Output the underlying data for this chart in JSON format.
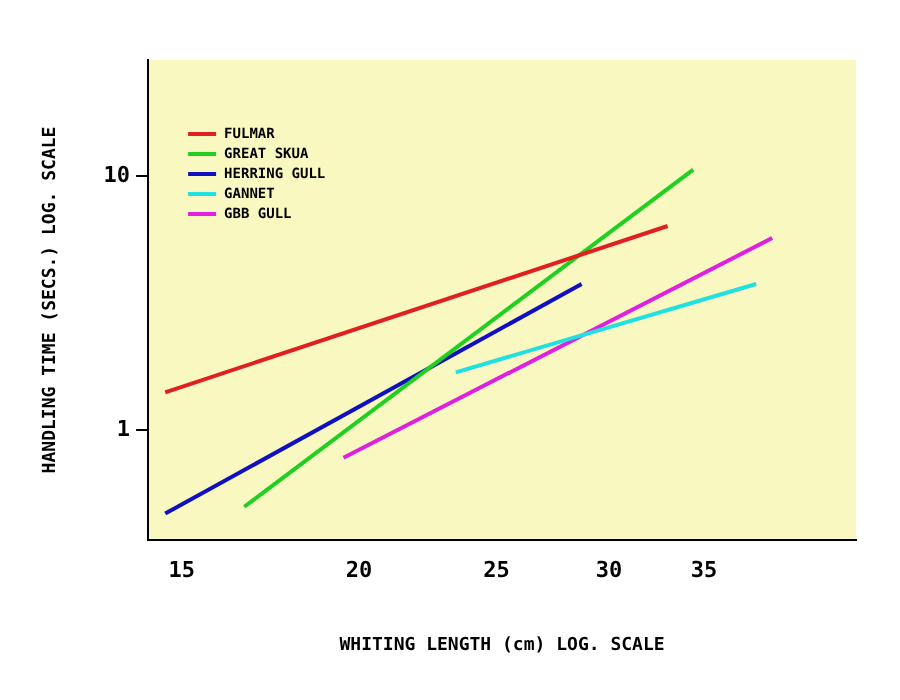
{
  "chart_data": {
    "type": "line",
    "xlabel": "WHITING LENGTH (cm) LOG. SCALE",
    "ylabel": "HANDLING TIME (SECS.) LOG. SCALE",
    "log": "xy",
    "xlim": [
      14.2,
      44.8
    ],
    "ylim": [
      0.37,
      28.6
    ],
    "xticks": [
      15,
      20,
      25,
      30,
      35
    ],
    "yticks": [
      1,
      10
    ],
    "grid": false,
    "legend": "top left",
    "marker": "none",
    "line_style": "solid",
    "series": [
      {
        "name": "FULMAR",
        "color": "#e02020",
        "x": [
          14.6,
          33
        ],
        "values": [
          1.41,
          6.36
        ]
      },
      {
        "name": "GREAT SKUA",
        "color": "#20d020",
        "x": [
          16.6,
          34.4
        ],
        "values": [
          0.5,
          10.6
        ]
      },
      {
        "name": "HERRING GULL",
        "color": "#1010c0",
        "x": [
          14.6,
          28.7
        ],
        "values": [
          0.47,
          3.76
        ]
      },
      {
        "name": "GANNET",
        "color": "#20e0e0",
        "x": [
          23.4,
          38.1
        ],
        "values": [
          1.69,
          3.76
        ]
      },
      {
        "name": "GBB GULL",
        "color": "#e020e0",
        "x": [
          19.5,
          39.1
        ],
        "values": [
          0.78,
          5.7
        ]
      }
    ]
  }
}
